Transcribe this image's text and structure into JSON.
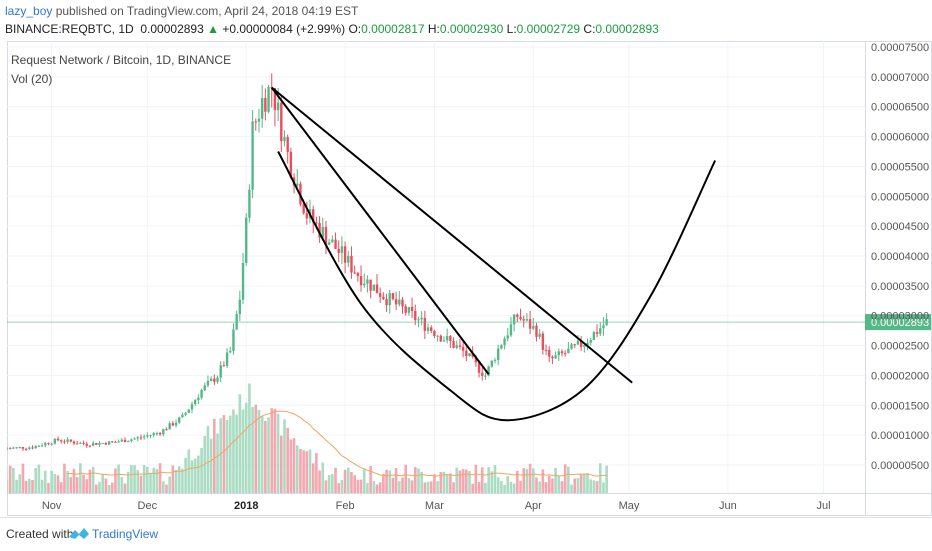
{
  "header": {
    "user": "lazy_boy",
    "published": " published on TradingView.com, April 24, 2018 04:19 EST",
    "symbol": "BINANCE:REQBTC, 1D",
    "last": "0.00002893",
    "change": "+0.00000084 (+2.99%)",
    "o_label": "O:",
    "o_value": "0.00002817",
    "h_label": "H:",
    "h_value": "0.00002930",
    "l_label": "L:",
    "l_value": "0.00002729",
    "c_label": "C:",
    "c_value": "0.00002893"
  },
  "legend": {
    "title": "Request Network / Bitcoin, 1D, BINANCE",
    "vol": "Vol (20)"
  },
  "footer": {
    "created": "Created with",
    "brand": "TradingView"
  },
  "colors": {
    "up": "#53b987",
    "down": "#eb4d5c",
    "vol_up": "#a9dcc3",
    "vol_down": "#f5a6ae",
    "ma": "#f5a45f",
    "price_line": "#53b987",
    "grid": "#f0f3fa",
    "drawing": "#000000"
  },
  "chart_data": {
    "type": "candlestick",
    "title": "Request Network / Bitcoin, 1D, BINANCE",
    "ylim": [
      0,
      7.6e-06
    ],
    "y_ticks": [
      "0.00000500",
      "0.00001000",
      "0.00001500",
      "0.00002000",
      "0.00002500",
      "0.00003000",
      "0.00003500",
      "0.00004000",
      "0.00004500",
      "0.00005000",
      "0.00005500",
      "0.00006000",
      "0.00006500",
      "0.00007000",
      "0.00007500"
    ],
    "y_tick_values": [
      5e-06,
      1e-05,
      1.5e-05,
      2e-05,
      2.5e-05,
      3e-05,
      3.5e-05,
      4e-05,
      4.5e-05,
      5e-05,
      5.5e-05,
      6e-05,
      6.5e-05,
      7e-05,
      7.5e-05
    ],
    "x_ticks": [
      "Nov",
      "Dec",
      "2018",
      "Feb",
      "Mar",
      "Apr",
      "May",
      "Jun",
      "Jul"
    ],
    "x_tick_dates": [
      "2017-11-01",
      "2017-12-01",
      "2018-01-01",
      "2018-02-01",
      "2018-03-01",
      "2018-04-01",
      "2018-05-01",
      "2018-06-01",
      "2018-07-01"
    ],
    "x_range": [
      "2017-10-18",
      "2018-07-14"
    ],
    "last_price": 2.893e-05,
    "last_price_label": "0.00002893",
    "close_series": [
      {
        "date": "2017-10-18",
        "close": 7.8e-06
      },
      {
        "date": "2017-10-26",
        "close": 8e-06
      },
      {
        "date": "2017-11-03",
        "close": 9.2e-06
      },
      {
        "date": "2017-11-12",
        "close": 8.5e-06
      },
      {
        "date": "2017-11-20",
        "close": 8.8e-06
      },
      {
        "date": "2017-11-28",
        "close": 9.5e-06
      },
      {
        "date": "2017-12-05",
        "close": 1.05e-05
      },
      {
        "date": "2017-12-12",
        "close": 1.3e-05
      },
      {
        "date": "2017-12-18",
        "close": 1.75e-05
      },
      {
        "date": "2017-12-23",
        "close": 2e-05
      },
      {
        "date": "2017-12-27",
        "close": 2.4e-05
      },
      {
        "date": "2017-12-30",
        "close": 3.3e-05
      },
      {
        "date": "2018-01-01",
        "close": 4.5e-05
      },
      {
        "date": "2018-01-03",
        "close": 6.1e-05
      },
      {
        "date": "2018-01-06",
        "close": 6.6e-05
      },
      {
        "date": "2018-01-09",
        "close": 6.85e-05
      },
      {
        "date": "2018-01-14",
        "close": 5.7e-05
      },
      {
        "date": "2018-01-20",
        "close": 4.7e-05
      },
      {
        "date": "2018-01-28",
        "close": 4.2e-05
      },
      {
        "date": "2018-02-05",
        "close": 3.7e-05
      },
      {
        "date": "2018-02-14",
        "close": 3.3e-05
      },
      {
        "date": "2018-02-22",
        "close": 3e-05
      },
      {
        "date": "2018-03-02",
        "close": 2.7e-05
      },
      {
        "date": "2018-03-10",
        "close": 2.4e-05
      },
      {
        "date": "2018-03-17",
        "close": 2e-05
      },
      {
        "date": "2018-03-22",
        "close": 2.55e-05
      },
      {
        "date": "2018-03-27",
        "close": 3e-05
      },
      {
        "date": "2018-04-02",
        "close": 2.75e-05
      },
      {
        "date": "2018-04-06",
        "close": 2.25e-05
      },
      {
        "date": "2018-04-12",
        "close": 2.4e-05
      },
      {
        "date": "2018-04-17",
        "close": 2.55e-05
      },
      {
        "date": "2018-04-20",
        "close": 2.7e-05
      },
      {
        "date": "2018-04-24",
        "close": 2.893e-05
      }
    ],
    "drawings": [
      {
        "type": "trendline",
        "from": {
          "date": "2018-01-09",
          "price": 6.82e-05
        },
        "to": {
          "date": "2018-05-02",
          "price": 1.88e-05
        }
      },
      {
        "type": "trendline",
        "from": {
          "date": "2018-01-09",
          "price": 6.82e-05
        },
        "to": {
          "date": "2018-03-18",
          "price": 2.02e-05
        }
      },
      {
        "type": "curve",
        "points": [
          {
            "date": "2018-01-11",
            "price": 5.75e-05
          },
          {
            "date": "2018-02-06",
            "price": 3.2e-05
          },
          {
            "date": "2018-03-06",
            "price": 1.75e-05
          },
          {
            "date": "2018-03-24",
            "price": 1.25e-05
          },
          {
            "date": "2018-04-17",
            "price": 1.78e-05
          },
          {
            "date": "2018-05-08",
            "price": 3.35e-05
          },
          {
            "date": "2018-05-28",
            "price": 5.6e-05
          }
        ]
      }
    ]
  }
}
